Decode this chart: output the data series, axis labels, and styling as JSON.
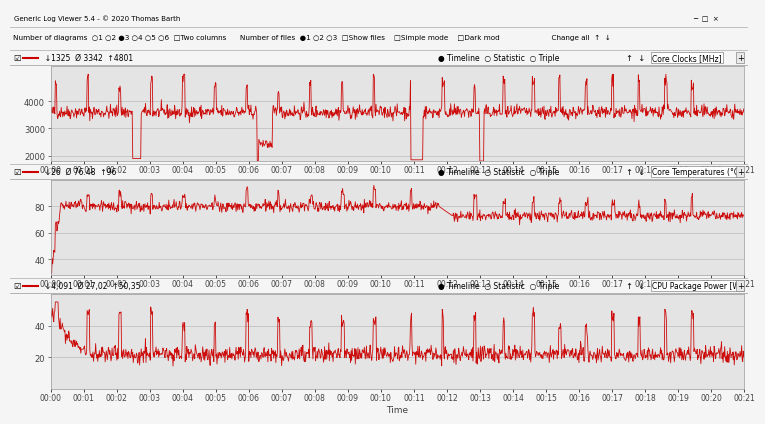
{
  "title_bar": "Generic Log Viewer 5.4 - © 2020 Thomas Barth",
  "time_ticks": [
    "00:00",
    "00:01",
    "00:02",
    "00:03",
    "00:04",
    "00:05",
    "00:06",
    "00:07",
    "00:08",
    "00:09",
    "00:10",
    "00:11",
    "00:12",
    "00:13",
    "00:14",
    "00:15",
    "00:16",
    "00:17",
    "00:18",
    "00:19",
    "00:20",
    "00:21"
  ],
  "toolbar_text": "Number of diagrams  ○1 ○2 ●3 ○4 ○5 ○6  □Two columns      Number of files  ●1 ○2 ○3  □Show files    □Simple mode    □Dark mod                                   Change all",
  "panel1": {
    "label": "Core Clocks [MHz]",
    "stat_min": "1325",
    "stat_avg": "3342",
    "stat_max": "4801",
    "ylim": [
      1800,
      5300
    ],
    "yticks": [
      2000,
      3000,
      4000
    ],
    "line_color": "#cc0000",
    "bg_color": "#e4e4e4",
    "grid_color": "#bbbbbb"
  },
  "panel2": {
    "label": "Core Temperatures (°C)",
    "stat_min": "26",
    "stat_avg": "76.48",
    "stat_max": "96",
    "ylim": [
      28,
      100
    ],
    "yticks": [
      40,
      60,
      80
    ],
    "line_color": "#cc0000",
    "bg_color": "#e4e4e4",
    "grid_color": "#bbbbbb"
  },
  "panel3": {
    "label": "CPU Package Power [W]",
    "stat_min": "4,091",
    "stat_avg": "27,02",
    "stat_max": "50,35",
    "ylim": [
      0,
      60
    ],
    "yticks": [
      20,
      40
    ],
    "line_color": "#cc0000",
    "bg_color": "#e4e4e4",
    "grid_color": "#bbbbbb"
  },
  "outer_bg": "#f0f0f0",
  "panel_header_bg": "#d8d8d8",
  "titlebar_bg": "#e0e0e0",
  "window_bg": "#f5f5f5"
}
